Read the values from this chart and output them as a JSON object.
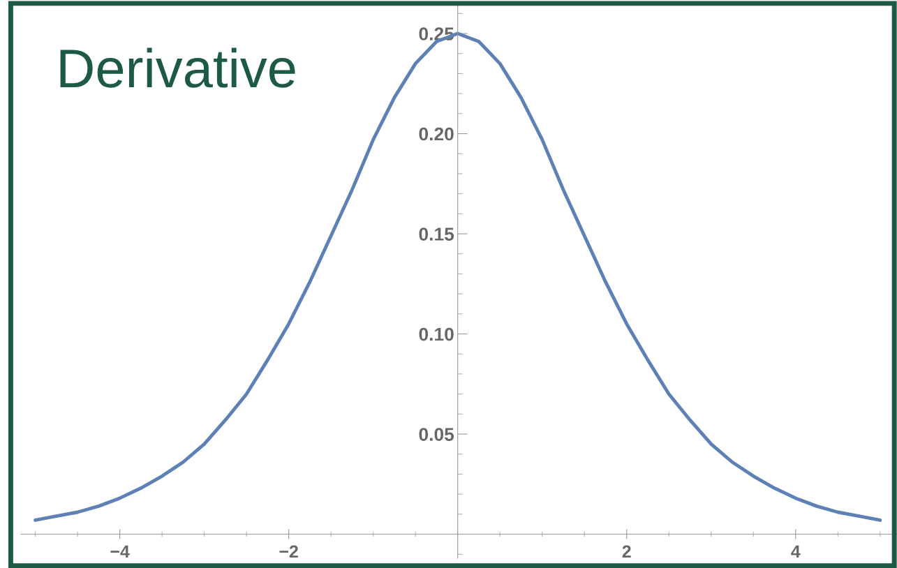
{
  "chart_data": {
    "type": "line",
    "title": "Derivative",
    "x": [
      -5,
      -4.75,
      -4.5,
      -4.25,
      -4,
      -3.75,
      -3.5,
      -3.25,
      -3,
      -2.75,
      -2.5,
      -2.25,
      -2,
      -1.75,
      -1.5,
      -1.25,
      -1,
      -0.75,
      -0.5,
      -0.25,
      0,
      0.25,
      0.5,
      0.75,
      1,
      1.25,
      1.5,
      1.75,
      2,
      2.25,
      2.5,
      2.75,
      3,
      3.25,
      3.5,
      3.75,
      4,
      4.25,
      4.5,
      4.75,
      5
    ],
    "series": [
      {
        "color": "#5e81b5",
        "values": [
          0.007,
          0.009,
          0.011,
          0.014,
          0.018,
          0.023,
          0.029,
          0.036,
          0.045,
          0.057,
          0.07,
          0.087,
          0.105,
          0.126,
          0.149,
          0.172,
          0.197,
          0.218,
          0.235,
          0.246,
          0.25,
          0.246,
          0.235,
          0.218,
          0.197,
          0.172,
          0.149,
          0.126,
          0.105,
          0.087,
          0.07,
          0.057,
          0.045,
          0.036,
          0.029,
          0.023,
          0.018,
          0.014,
          0.011,
          0.009,
          0.007
        ]
      }
    ],
    "xlim": [
      -5.17,
      5.2
    ],
    "ylim": [
      -0.012,
      0.265
    ],
    "xticks": [
      {
        "value": -4,
        "label": "−4"
      },
      {
        "value": -2,
        "label": "−2"
      },
      2,
      4
    ],
    "yticks": [
      0.05,
      {
        "value": 0.1,
        "label": "0.10"
      },
      0.15,
      {
        "value": 0.2,
        "label": "0.20"
      },
      0.25
    ],
    "grid": false,
    "marker": "none",
    "line_style": "solid"
  }
}
